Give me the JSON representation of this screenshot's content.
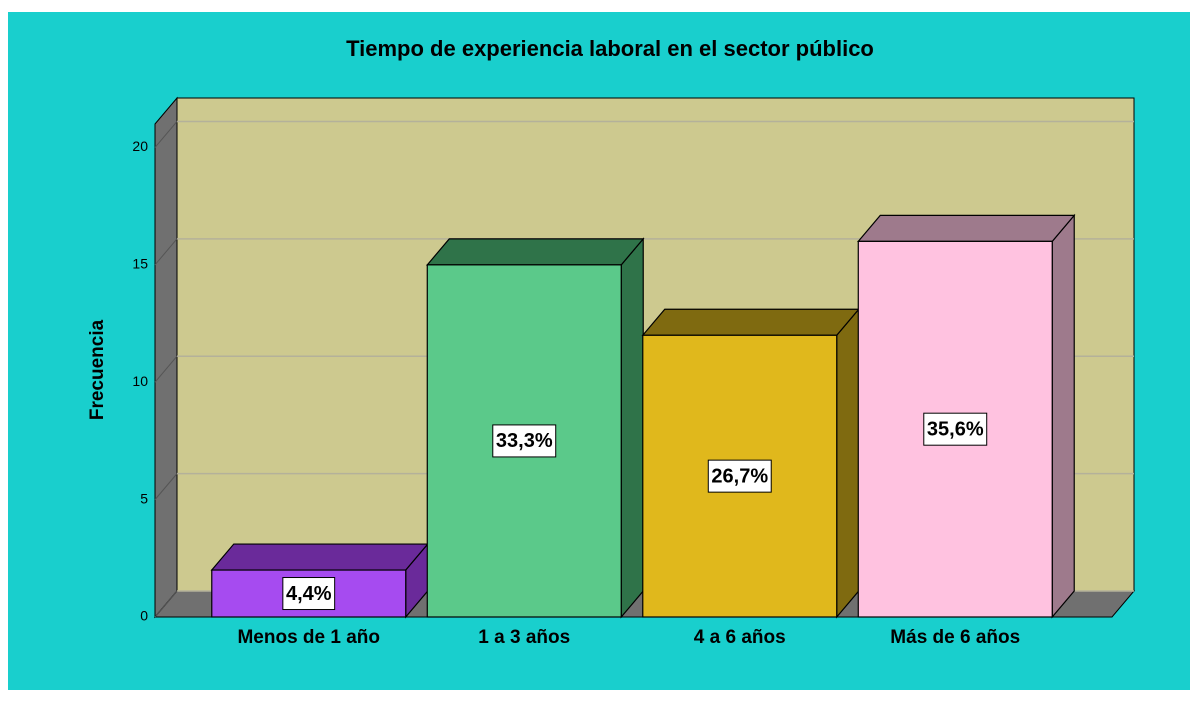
{
  "chart_data": {
    "type": "bar3d",
    "title": "Tiempo de experiencia laboral en el sector público",
    "y_label": "Frecuencia",
    "categories": [
      "Menos de 1 año",
      "1 a 3 años",
      "4 a 6 años",
      "Más de 6 años"
    ],
    "values": [
      2,
      15,
      12,
      16
    ],
    "data_labels": [
      "4,4%",
      "33,3%",
      "26,7%",
      "35,6%"
    ],
    "colors": [
      "#a64bf0",
      "#5bc98a",
      "#e0b81c",
      "#ffc2e0"
    ],
    "shade_colors": [
      "#6a2a9a",
      "#2f7349",
      "#7f6a10",
      "#9e7a8c"
    ],
    "ylim": [
      0,
      21
    ],
    "yticks": [
      0,
      5,
      10,
      15,
      20
    ],
    "grid": true
  }
}
